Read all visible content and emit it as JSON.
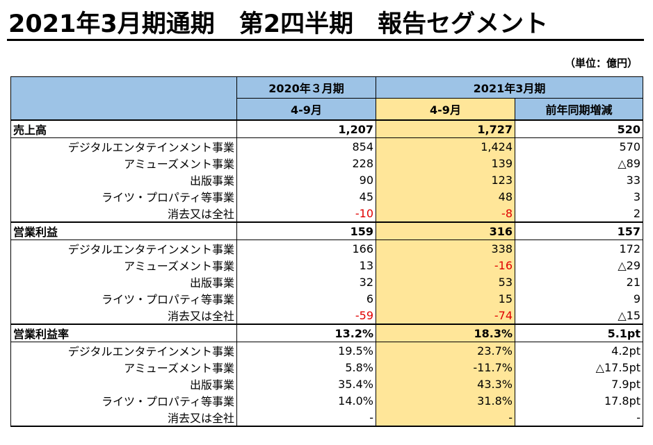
{
  "title": "2021年3月期通期　第2四半期　報告セグメント",
  "unit": "（単位：億円）",
  "header": {
    "col1_year": "2020年３月期",
    "col23_year": "2021年3月期",
    "col1_period": "4-9月",
    "col2_period": "4-9月",
    "col3_period": "前年同期増減"
  },
  "sections": [
    {
      "label": "売上高",
      "values": [
        "1,207",
        "1,727",
        "520"
      ],
      "rows": [
        {
          "label": "デジタルエンタテインメント事業",
          "values": [
            "854",
            "1,424",
            "570"
          ]
        },
        {
          "label": "アミューズメント事業",
          "values": [
            "228",
            "139",
            "△89"
          ]
        },
        {
          "label": "出版事業",
          "values": [
            "90",
            "123",
            "33"
          ]
        },
        {
          "label": "ライツ・プロパティ等事業",
          "values": [
            "45",
            "48",
            "3"
          ]
        },
        {
          "label": "消去又は全社",
          "values": [
            "-10",
            "-8",
            "2"
          ],
          "neg": [
            true,
            true,
            false
          ]
        }
      ]
    },
    {
      "label": "営業利益",
      "values": [
        "159",
        "316",
        "157"
      ],
      "rows": [
        {
          "label": "デジタルエンタテインメント事業",
          "values": [
            "166",
            "338",
            "172"
          ]
        },
        {
          "label": "アミューズメント事業",
          "values": [
            "13",
            "-16",
            "△29"
          ],
          "neg": [
            false,
            true,
            false
          ]
        },
        {
          "label": "出版事業",
          "values": [
            "32",
            "53",
            "21"
          ]
        },
        {
          "label": "ライツ・プロパティ等事業",
          "values": [
            "6",
            "15",
            "9"
          ]
        },
        {
          "label": "消去又は全社",
          "values": [
            "-59",
            "-74",
            "△15"
          ],
          "neg": [
            true,
            true,
            false
          ]
        }
      ]
    },
    {
      "label": "営業利益率",
      "values": [
        "13.2%",
        "18.3%",
        "5.1pt"
      ],
      "rows": [
        {
          "label": "デジタルエンタテインメント事業",
          "values": [
            "19.5%",
            "23.7%",
            "4.2pt"
          ]
        },
        {
          "label": "アミューズメント事業",
          "values": [
            "5.8%",
            "-11.7%",
            "△17.5pt"
          ]
        },
        {
          "label": "出版事業",
          "values": [
            "35.4%",
            "43.3%",
            "7.9pt"
          ]
        },
        {
          "label": "ライツ・プロパティ等事業",
          "values": [
            "14.0%",
            "31.8%",
            "17.8pt"
          ]
        },
        {
          "label": "消去又は全社",
          "values": [
            "-",
            "-",
            "-"
          ]
        }
      ]
    }
  ],
  "colors": {
    "header_blue": "#9dc3e6",
    "highlight": "#ffe699",
    "negative": "#e00000"
  }
}
